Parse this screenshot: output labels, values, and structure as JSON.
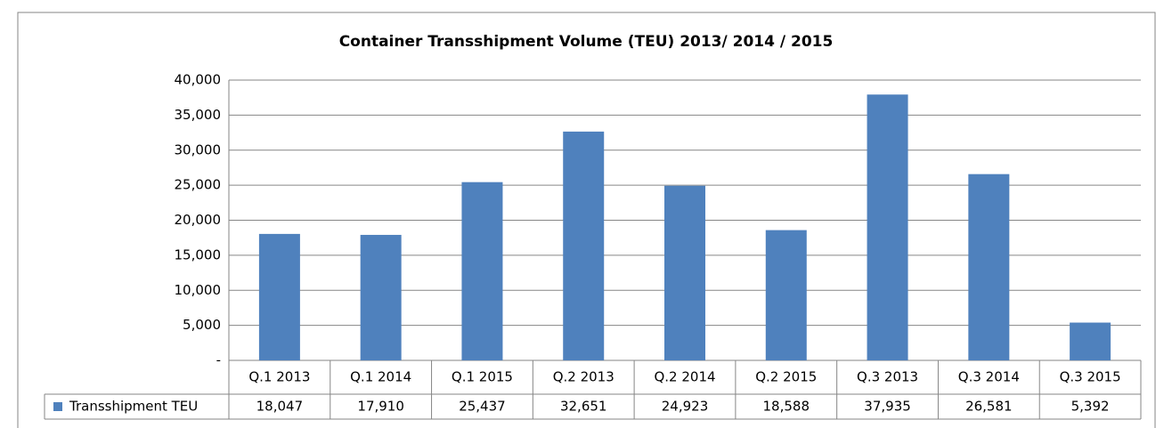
{
  "chart_data": {
    "type": "bar",
    "title": "Container Transshipment Volume (TEU) 2013/ 2014 / 2015",
    "categories": [
      "Q.1 2013",
      "Q.1 2014",
      "Q.1 2015",
      "Q.2 2013",
      "Q.2 2014",
      "Q.2 2015",
      "Q.3 2013",
      "Q.3 2014",
      "Q.3 2015"
    ],
    "series": [
      {
        "name": "Transshipment TEU",
        "color": "#4f81bd",
        "values": [
          18047,
          17910,
          25437,
          32651,
          24923,
          18588,
          37935,
          26581,
          5392
        ],
        "value_labels": [
          "18,047",
          "17,910",
          "25,437",
          "32,651",
          "24,923",
          "18,588",
          "37,935",
          "26,581",
          "5,392"
        ]
      }
    ],
    "ylim": [
      0,
      40000
    ],
    "yticks": [
      {
        "value": 0,
        "label": "-"
      },
      {
        "value": 5000,
        "label": "5,000"
      },
      {
        "value": 10000,
        "label": "10,000"
      },
      {
        "value": 15000,
        "label": "15,000"
      },
      {
        "value": 20000,
        "label": "20,000"
      },
      {
        "value": 25000,
        "label": "25,000"
      },
      {
        "value": 30000,
        "label": "30,000"
      },
      {
        "value": 35000,
        "label": "35,000"
      },
      {
        "value": 40000,
        "label": "40,000"
      }
    ],
    "grid": true
  }
}
